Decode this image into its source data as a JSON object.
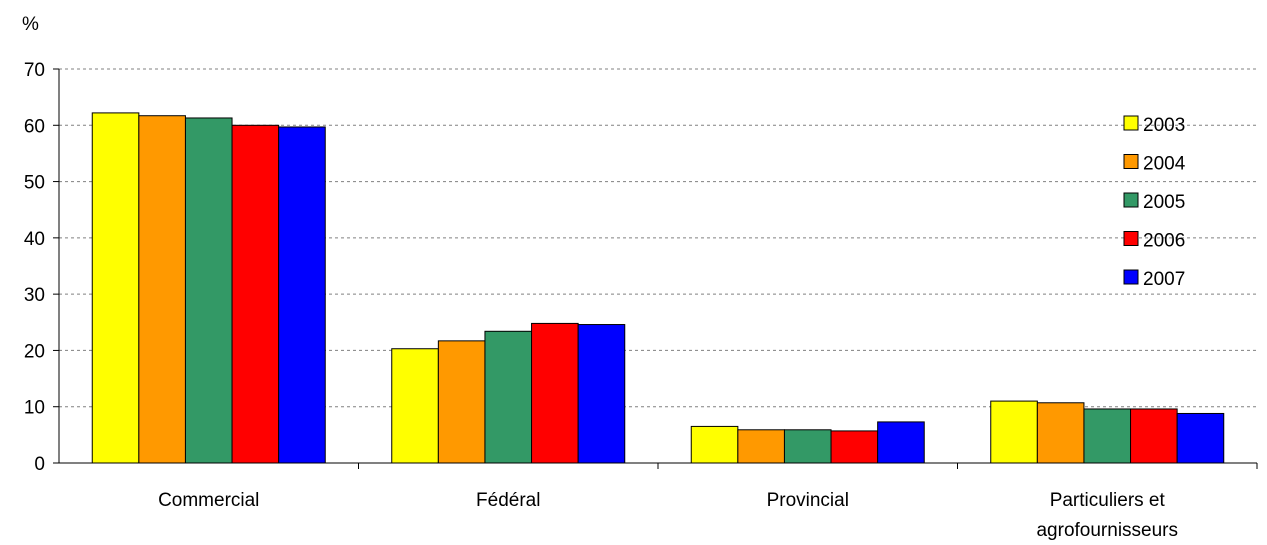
{
  "chart_data": {
    "type": "bar",
    "ylabel": "%",
    "ylim": [
      0,
      70
    ],
    "yticks": [
      "0",
      "10",
      "20",
      "30",
      "40",
      "50",
      "60",
      "70"
    ],
    "categories": [
      "Commercial",
      "Fédéral",
      "Provincial",
      "Particuliers et|agrofournisseurs"
    ],
    "series": [
      {
        "name": "2003",
        "color": "#ffff00",
        "values": [
          62.2,
          20.3,
          6.5,
          11.0
        ]
      },
      {
        "name": "2004",
        "color": "#ff9900",
        "values": [
          61.7,
          21.7,
          5.9,
          10.7
        ]
      },
      {
        "name": "2005",
        "color": "#339966",
        "values": [
          61.3,
          23.4,
          5.9,
          9.6
        ]
      },
      {
        "name": "2006",
        "color": "#ff0000",
        "values": [
          60.0,
          24.8,
          5.7,
          9.6
        ]
      },
      {
        "name": "2007",
        "color": "#0000ff",
        "values": [
          59.7,
          24.6,
          7.3,
          8.8
        ]
      }
    ],
    "grid": true,
    "legend_position": "top-right"
  }
}
